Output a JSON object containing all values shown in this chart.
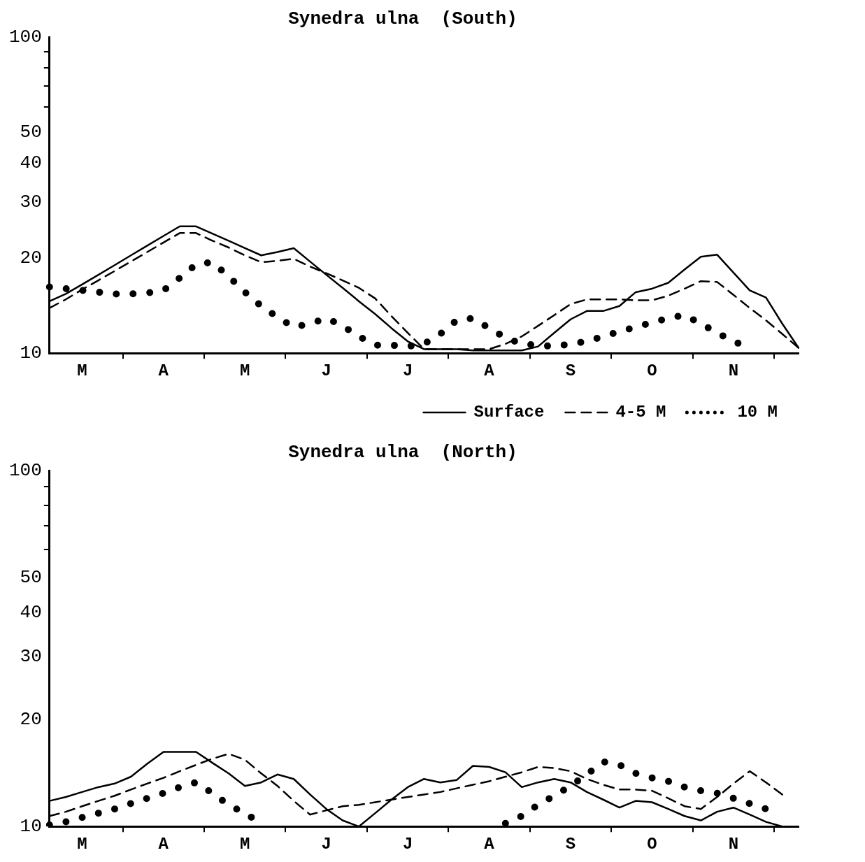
{
  "chart_data": [
    {
      "type": "line",
      "title": "Synedra ulna  (South)",
      "log": "y",
      "grid": false,
      "legend": "bottom right",
      "marker": "none",
      "ylim": [
        10,
        100
      ],
      "yticks": [
        10,
        20,
        30,
        40,
        50,
        {
          "value": 60,
          "label": null
        },
        {
          "value": 70,
          "label": null
        },
        {
          "value": 80,
          "label": null
        },
        {
          "value": 90,
          "label": null
        },
        100
      ],
      "categories": [
        null,
        null,
        "M",
        null,
        null,
        null,
        null,
        "A",
        null,
        null,
        null,
        null,
        "M",
        null,
        null,
        null,
        null,
        "J",
        null,
        null,
        null,
        null,
        "J",
        null,
        null,
        null,
        null,
        "A",
        null,
        null,
        null,
        null,
        "S",
        null,
        null,
        null,
        null,
        "O",
        null,
        null,
        null,
        null,
        "N",
        null,
        null,
        null,
        null
      ],
      "series": [
        {
          "name": "Surface",
          "color": "#000000",
          "line_style": "solid",
          "values": [
            14.6,
            15.4,
            16.5,
            17.7,
            19.0,
            20.4,
            21.9,
            23.5,
            25.2,
            25.2,
            23.9,
            22.7,
            21.5,
            20.4,
            20.9,
            21.5,
            19.5,
            17.7,
            16.1,
            14.6,
            13.3,
            12.0,
            10.9,
            10.3,
            10.3,
            10.3,
            10.2,
            10.2,
            10.2,
            10.2,
            10.5,
            11.6,
            12.8,
            13.6,
            13.6,
            14.1,
            15.6,
            16.0,
            16.7,
            18.4,
            20.2,
            20.5,
            18.0,
            15.8,
            15.0,
            12.4,
            10.4
          ]
        },
        {
          "name": "4-5 M",
          "color": "#000000",
          "line_style": "dashed",
          "values": [
            13.9,
            14.8,
            15.9,
            17.0,
            18.2,
            19.5,
            20.9,
            22.4,
            24.0,
            24.0,
            22.7,
            21.6,
            20.4,
            19.4,
            19.6,
            19.9,
            18.8,
            17.9,
            17.0,
            16.1,
            14.9,
            13.1,
            11.6,
            10.3,
            10.3,
            10.3,
            10.3,
            10.3,
            10.7,
            11.3,
            12.2,
            13.2,
            14.3,
            14.8,
            14.8,
            14.8,
            14.7,
            14.7,
            15.2,
            16.0,
            16.9,
            16.8,
            15.3,
            13.9,
            12.7,
            11.5,
            10.4
          ]
        },
        {
          "name": "10 M",
          "color": "#000000",
          "line_style": "dotted",
          "values": [
            16.2,
            16.0,
            15.8,
            15.6,
            15.4,
            15.4,
            15.5,
            15.8,
            17.3,
            19.1,
            19.4,
            17.5,
            15.6,
            14.1,
            13.0,
            12.1,
            12.4,
            12.9,
            12.2,
            11.3,
            10.6,
            10.6,
            10.5,
            10.7,
            11.5,
            12.7,
            12.9,
            12.0,
            11.2,
            10.7,
            10.6,
            10.5,
            10.7,
            10.9,
            11.3,
            11.7,
            12.1,
            12.5,
            12.9,
            13.2,
            12.4,
            11.6,
            10.9,
            10.4,
            null,
            null,
            null
          ]
        }
      ]
    },
    {
      "type": "line",
      "title": "Synedra ulna  (North)",
      "log": "y",
      "grid": false,
      "marker": "none",
      "ylim": [
        10,
        100
      ],
      "yticks": [
        10,
        20,
        30,
        40,
        50,
        {
          "value": 60,
          "label": null
        },
        {
          "value": 70,
          "label": null
        },
        {
          "value": 80,
          "label": null
        },
        {
          "value": 90,
          "label": null
        },
        100
      ],
      "categories": [
        null,
        null,
        "M",
        null,
        null,
        null,
        null,
        "A",
        null,
        null,
        null,
        null,
        "M",
        null,
        null,
        null,
        null,
        "J",
        null,
        null,
        null,
        null,
        "J",
        null,
        null,
        null,
        null,
        "A",
        null,
        null,
        null,
        null,
        "S",
        null,
        null,
        null,
        null,
        "O",
        null,
        null,
        null,
        null,
        "N",
        null,
        null,
        null,
        null
      ],
      "series": [
        {
          "color": "#000000",
          "line_style": "solid",
          "values": [
            11.8,
            12.1,
            12.5,
            12.9,
            13.2,
            13.8,
            15.0,
            16.2,
            16.2,
            16.2,
            15.1,
            14.1,
            13.0,
            13.3,
            14.0,
            13.6,
            12.3,
            11.2,
            10.4,
            10.0,
            10.9,
            11.9,
            12.9,
            13.6,
            13.3,
            13.5,
            14.8,
            14.7,
            14.2,
            12.9,
            13.3,
            13.6,
            13.3,
            12.5,
            11.9,
            11.3,
            11.8,
            11.7,
            11.2,
            10.7,
            10.4,
            11.0,
            11.3,
            10.8,
            10.3,
            10.0,
            null
          ]
        },
        {
          "color": "#000000",
          "line_style": "dashed",
          "values": [
            10.7,
            11.0,
            11.4,
            11.8,
            12.2,
            12.7,
            13.2,
            13.7,
            14.3,
            14.9,
            15.5,
            16.0,
            15.4,
            14.1,
            13.0,
            11.8,
            10.8,
            11.1,
            11.4,
            11.5,
            11.7,
            11.9,
            12.1,
            12.3,
            12.5,
            12.8,
            13.1,
            13.4,
            13.8,
            14.2,
            14.7,
            14.6,
            14.3,
            13.6,
            13.1,
            12.7,
            12.7,
            12.6,
            12.0,
            11.4,
            11.2,
            12.1,
            13.2,
            14.3,
            13.3,
            12.3,
            null
          ]
        },
        {
          "color": "#000000",
          "line_style": "dotted",
          "values": [
            10.1,
            10.3,
            10.6,
            10.9,
            11.2,
            11.6,
            12.0,
            12.4,
            12.9,
            13.3,
            12.4,
            11.5,
            10.9,
            10.2,
            null,
            null,
            null,
            null,
            null,
            null,
            null,
            null,
            null,
            null,
            null,
            null,
            null,
            null,
            10.2,
            10.7,
            11.5,
            12.2,
            13.0,
            14.0,
            15.2,
            14.9,
            14.1,
            13.7,
            13.4,
            12.9,
            12.6,
            12.4,
            12.0,
            11.6,
            11.2,
            null,
            null
          ]
        }
      ]
    }
  ]
}
